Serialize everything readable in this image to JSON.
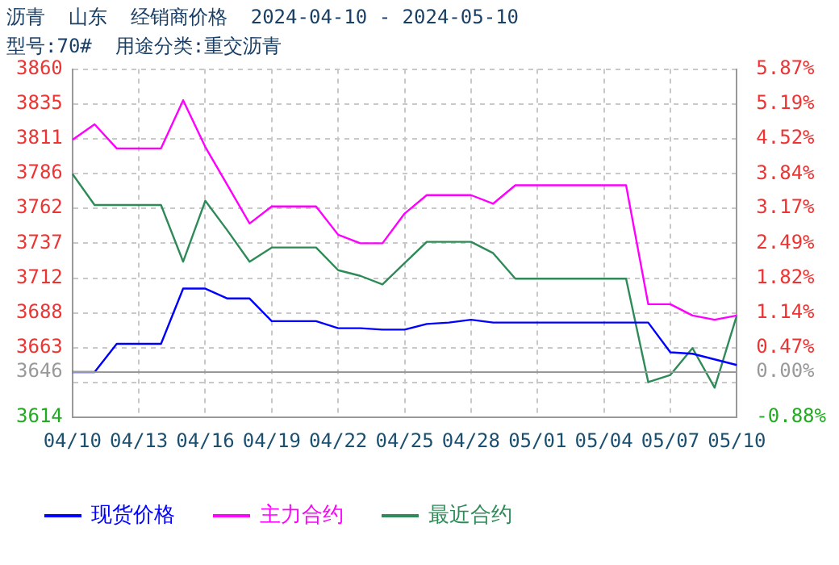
{
  "chart_data": {
    "type": "line",
    "title": "沥青  山东  经销商价格  2024-04-10 - 2024-05-10",
    "subtitle": "型号:70#  用途分类:重交沥青",
    "categories": [
      "04/10",
      null,
      null,
      "04/13",
      null,
      null,
      "04/16",
      null,
      null,
      "04/19",
      null,
      null,
      "04/22",
      null,
      null,
      "04/25",
      null,
      null,
      "04/28",
      null,
      null,
      "05/01",
      null,
      null,
      "05/04",
      null,
      null,
      "05/07",
      null,
      null,
      "05/10"
    ],
    "series": [
      {
        "name": "现货价格",
        "color": "#0000ff",
        "values": [
          3646,
          3646,
          3666,
          3666,
          3666,
          3705,
          3705,
          3698,
          3698,
          3682,
          3682,
          3682,
          3677,
          3677,
          3676,
          3676,
          3680,
          3681,
          3683,
          3681,
          3681,
          3681,
          3681,
          3681,
          3681,
          3681,
          3681,
          3660,
          3659,
          3655,
          3651
        ]
      },
      {
        "name": "主力合约",
        "color": "#ff00ff",
        "values": [
          3810,
          3821,
          3804,
          3804,
          3804,
          3838,
          3805,
          3778,
          3751,
          3763,
          3763,
          3763,
          3743,
          3737,
          3737,
          3758,
          3771,
          3771,
          3771,
          3765,
          3778,
          3778,
          3778,
          3778,
          3778,
          3778,
          3694,
          3694,
          3686,
          3683,
          3686
        ]
      },
      {
        "name": "最近合约",
        "color": "#2e8b57",
        "values": [
          3786,
          3764,
          3764,
          3764,
          3764,
          3724,
          3767,
          3746,
          3724,
          3734,
          3734,
          3734,
          3718,
          3714,
          3708,
          3723,
          3738,
          3738,
          3738,
          3730,
          3712,
          3712,
          3712,
          3712,
          3712,
          3712,
          3639,
          3644,
          3663,
          3635,
          3686
        ]
      }
    ],
    "ylim": [
      3614,
      3860
    ],
    "yticks": [
      3860,
      {
        "value": 3835.4,
        "label": "3835"
      },
      {
        "value": 3810.8,
        "label": "3811"
      },
      {
        "value": 3786.2,
        "label": "3786"
      },
      {
        "value": 3761.6,
        "label": "3762"
      },
      {
        "value": 3737,
        "label": "3737"
      },
      {
        "value": 3712.4,
        "label": "3712"
      },
      {
        "value": 3687.8,
        "label": "3688"
      },
      {
        "value": 3663.2,
        "label": "3663"
      },
      3646,
      {
        "value": 3638.6,
        "label": null
      },
      3614
    ],
    "y2lim": [
      -0.88,
      5.87
    ],
    "y2ticks": [
      {
        "value": 5.87,
        "label": "5.87%"
      },
      {
        "value": 5.19,
        "label": "5.19%"
      },
      {
        "value": 4.52,
        "label": "4.52%"
      },
      {
        "value": 3.84,
        "label": "3.84%"
      },
      {
        "value": 3.17,
        "label": "3.17%"
      },
      {
        "value": 2.49,
        "label": "2.49%"
      },
      {
        "value": 1.82,
        "label": "1.82%"
      },
      {
        "value": 1.14,
        "label": "1.14%"
      },
      {
        "value": 0.47,
        "label": "0.47%"
      },
      {
        "value": 0,
        "label": "0.00%"
      },
      {
        "value": -0.88,
        "label": "-0.88%"
      }
    ],
    "ref_lines": [
      {
        "axis": "y",
        "value": 3646,
        "color": "#999999",
        "line_style": "solid"
      }
    ],
    "grid": true,
    "legend": "bottom",
    "marker": "none",
    "line_style": "solid"
  }
}
